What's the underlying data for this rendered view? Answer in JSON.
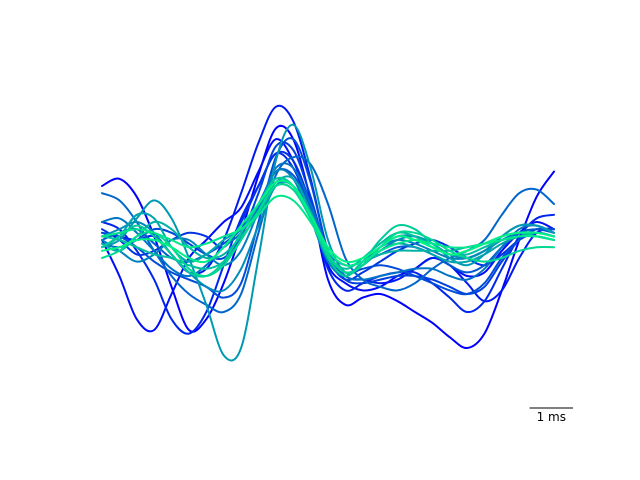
{
  "chart_data": {
    "type": "line",
    "title": "",
    "xlabel": "",
    "ylabel": "",
    "axes_visible": false,
    "grid": false,
    "legend": false,
    "x_unit": "ms",
    "xlim": [
      0,
      10.4
    ],
    "ylim": [
      -1.0,
      1.0
    ],
    "colormap": "winter",
    "scalebar": {
      "length_ms": 1,
      "label": "1 ms"
    },
    "x": [
      0,
      0.4,
      0.8,
      1.2,
      1.6,
      2.0,
      2.4,
      2.8,
      3.2,
      3.6,
      4.0,
      4.4,
      4.8,
      5.2,
      5.6,
      6.0,
      6.4,
      6.8,
      7.2,
      7.6,
      8.0,
      8.4,
      8.8,
      9.2,
      9.6,
      10.0,
      10.4
    ],
    "series": [
      {
        "color": "#0000ff",
        "values": [
          0.3,
          0.34,
          0.24,
          0.02,
          -0.26,
          -0.5,
          -0.44,
          -0.24,
          0.04,
          0.36,
          0.62,
          0.56,
          0.22,
          -0.22,
          -0.36,
          -0.32,
          -0.3,
          -0.34,
          -0.4,
          -0.46,
          -0.54,
          -0.6,
          -0.52,
          -0.28,
          0.0,
          0.24,
          0.38
        ]
      },
      {
        "color": "#000cf9",
        "values": [
          0.0,
          -0.2,
          -0.44,
          -0.5,
          -0.3,
          -0.1,
          0.0,
          0.1,
          0.18,
          0.38,
          0.56,
          0.44,
          0.18,
          -0.14,
          -0.24,
          -0.28,
          -0.26,
          -0.2,
          -0.16,
          -0.1,
          -0.14,
          -0.2,
          -0.18,
          -0.06,
          0.04,
          0.1,
          0.06
        ]
      },
      {
        "color": "#0019f2",
        "values": [
          0.04,
          0.02,
          0.0,
          0.02,
          -0.08,
          -0.18,
          -0.16,
          0.0,
          0.26,
          0.54,
          0.74,
          0.66,
          0.34,
          -0.06,
          -0.2,
          -0.22,
          -0.24,
          -0.22,
          -0.16,
          -0.1,
          -0.14,
          -0.24,
          -0.34,
          -0.28,
          -0.1,
          0.04,
          0.06
        ]
      },
      {
        "color": "#0026ec",
        "values": [
          0.1,
          0.06,
          -0.06,
          -0.22,
          -0.44,
          -0.52,
          -0.4,
          -0.14,
          0.12,
          0.3,
          0.48,
          0.4,
          0.16,
          -0.16,
          -0.28,
          -0.24,
          -0.2,
          -0.18,
          -0.18,
          -0.24,
          -0.32,
          -0.4,
          -0.34,
          -0.16,
          0.02,
          0.12,
          0.14
        ]
      },
      {
        "color": "#0033e6",
        "values": [
          0.06,
          0.0,
          -0.08,
          -0.06,
          0.0,
          0.04,
          0.02,
          -0.04,
          0.1,
          0.3,
          0.48,
          0.44,
          0.2,
          -0.1,
          -0.22,
          -0.18,
          -0.12,
          -0.06,
          -0.02,
          0.0,
          -0.04,
          -0.1,
          -0.14,
          -0.08,
          0.0,
          0.04,
          0.02
        ]
      },
      {
        "color": "#0040df",
        "values": [
          -0.02,
          -0.04,
          0.0,
          0.06,
          0.04,
          -0.02,
          -0.08,
          -0.1,
          0.02,
          0.26,
          0.52,
          0.5,
          0.24,
          -0.08,
          -0.22,
          -0.24,
          -0.22,
          -0.2,
          -0.2,
          -0.22,
          -0.26,
          -0.3,
          -0.26,
          -0.12,
          0.0,
          0.06,
          0.04
        ]
      },
      {
        "color": "#004cd9",
        "values": [
          0.04,
          0.02,
          -0.04,
          -0.12,
          -0.18,
          -0.22,
          -0.26,
          -0.32,
          -0.24,
          0.1,
          0.46,
          0.56,
          0.32,
          -0.06,
          -0.18,
          -0.16,
          -0.14,
          -0.16,
          -0.2,
          -0.24,
          -0.28,
          -0.3,
          -0.24,
          -0.1,
          0.0,
          0.06,
          0.06
        ]
      },
      {
        "color": "#0059d2",
        "values": [
          0.0,
          0.04,
          0.06,
          -0.02,
          -0.1,
          -0.12,
          -0.08,
          -0.02,
          0.06,
          0.2,
          0.38,
          0.36,
          0.18,
          -0.06,
          -0.14,
          -0.12,
          -0.08,
          -0.04,
          -0.04,
          -0.08,
          -0.14,
          -0.18,
          -0.14,
          -0.04,
          0.04,
          0.06,
          0.04
        ]
      },
      {
        "color": "#0066cc",
        "values": [
          0.26,
          0.22,
          0.1,
          -0.06,
          -0.2,
          -0.3,
          -0.36,
          -0.4,
          -0.3,
          0.04,
          0.36,
          0.46,
          0.42,
          0.2,
          -0.1,
          -0.22,
          -0.26,
          -0.28,
          -0.24,
          -0.16,
          -0.1,
          -0.06,
          0.0,
          0.14,
          0.26,
          0.28,
          0.2
        ]
      },
      {
        "color": "#0073c6",
        "values": [
          0.1,
          0.12,
          0.04,
          -0.06,
          -0.16,
          -0.2,
          -0.14,
          -0.04,
          0.04,
          0.18,
          0.4,
          0.4,
          0.2,
          -0.06,
          -0.2,
          -0.22,
          -0.2,
          -0.18,
          -0.16,
          -0.16,
          -0.2,
          -0.22,
          -0.16,
          -0.04,
          0.06,
          0.08,
          0.04
        ]
      },
      {
        "color": "#0080bf",
        "values": [
          0.0,
          -0.06,
          -0.12,
          -0.08,
          0.0,
          0.0,
          -0.08,
          -0.14,
          -0.06,
          0.16,
          0.38,
          0.34,
          0.12,
          -0.12,
          -0.2,
          -0.12,
          -0.04,
          0.0,
          -0.02,
          -0.06,
          -0.1,
          -0.1,
          -0.06,
          0.0,
          0.04,
          0.04,
          0.02
        ]
      },
      {
        "color": "#008cb9",
        "values": [
          0.02,
          0.06,
          0.1,
          0.04,
          -0.08,
          -0.18,
          -0.26,
          -0.28,
          -0.16,
          0.08,
          0.3,
          0.3,
          0.14,
          -0.08,
          -0.18,
          -0.14,
          -0.06,
          0.0,
          0.02,
          -0.02,
          -0.08,
          -0.1,
          -0.06,
          0.02,
          0.08,
          0.08,
          0.04
        ]
      },
      {
        "color": "#0099b2",
        "values": [
          -0.04,
          0.0,
          0.12,
          0.22,
          0.12,
          -0.1,
          -0.36,
          -0.64,
          -0.6,
          -0.1,
          0.44,
          0.64,
          0.4,
          0.0,
          -0.18,
          -0.14,
          -0.04,
          0.02,
          0.02,
          -0.02,
          -0.1,
          -0.14,
          -0.08,
          0.02,
          0.08,
          0.08,
          0.04
        ]
      },
      {
        "color": "#00a6ac",
        "values": [
          -0.04,
          0.02,
          0.14,
          0.12,
          -0.04,
          -0.12,
          -0.08,
          0.0,
          0.06,
          0.16,
          0.32,
          0.34,
          0.16,
          -0.08,
          -0.18,
          -0.14,
          -0.06,
          -0.02,
          -0.04,
          -0.08,
          -0.12,
          -0.12,
          -0.08,
          -0.02,
          0.02,
          0.04,
          0.02
        ]
      },
      {
        "color": "#00b2a6",
        "values": [
          -0.02,
          -0.06,
          0.02,
          0.1,
          0.06,
          -0.04,
          -0.1,
          -0.08,
          0.02,
          0.14,
          0.3,
          0.28,
          0.12,
          -0.06,
          -0.14,
          -0.12,
          -0.08,
          -0.06,
          -0.06,
          -0.06,
          -0.06,
          -0.04,
          -0.02,
          0.0,
          0.02,
          0.02,
          0.0
        ]
      },
      {
        "color": "#00bf9f",
        "values": [
          0.02,
          0.0,
          -0.04,
          -0.08,
          -0.1,
          -0.14,
          -0.16,
          -0.12,
          0.0,
          0.16,
          0.32,
          0.3,
          0.14,
          -0.08,
          -0.16,
          -0.1,
          -0.02,
          0.04,
          0.02,
          -0.04,
          -0.08,
          -0.08,
          -0.04,
          0.0,
          0.02,
          0.02,
          0.0
        ]
      },
      {
        "color": "#00cc99",
        "values": [
          -0.04,
          0.02,
          0.08,
          0.02,
          -0.08,
          -0.18,
          -0.2,
          -0.12,
          0.04,
          0.2,
          0.34,
          0.3,
          0.12,
          -0.1,
          -0.2,
          -0.12,
          0.0,
          0.08,
          0.06,
          -0.02,
          -0.08,
          -0.06,
          -0.02,
          0.02,
          0.04,
          0.02,
          0.0
        ]
      },
      {
        "color": "#00d992",
        "values": [
          -0.1,
          -0.06,
          0.02,
          0.04,
          -0.04,
          -0.16,
          -0.2,
          -0.14,
          0.0,
          0.16,
          0.3,
          0.28,
          0.12,
          -0.08,
          -0.18,
          -0.14,
          -0.04,
          0.04,
          0.04,
          0.0,
          -0.06,
          -0.1,
          -0.12,
          -0.1,
          -0.06,
          -0.04,
          -0.04
        ]
      },
      {
        "color": "#00e68c",
        "values": [
          0.02,
          0.04,
          0.06,
          0.04,
          0.0,
          -0.04,
          -0.02,
          0.02,
          0.06,
          0.14,
          0.24,
          0.22,
          0.1,
          -0.06,
          -0.14,
          -0.12,
          -0.06,
          -0.02,
          0.0,
          -0.02,
          -0.04,
          -0.04,
          -0.02,
          0.0,
          0.02,
          0.02,
          0.0
        ]
      },
      {
        "color": "#00f286",
        "values": [
          -0.06,
          -0.04,
          0.0,
          0.0,
          -0.04,
          -0.1,
          -0.12,
          -0.04,
          0.08,
          0.2,
          0.32,
          0.3,
          0.14,
          -0.04,
          -0.12,
          -0.1,
          -0.04,
          0.02,
          0.0,
          -0.04,
          -0.08,
          -0.06,
          -0.02,
          0.02,
          0.04,
          0.04,
          0.02
        ]
      }
    ]
  }
}
